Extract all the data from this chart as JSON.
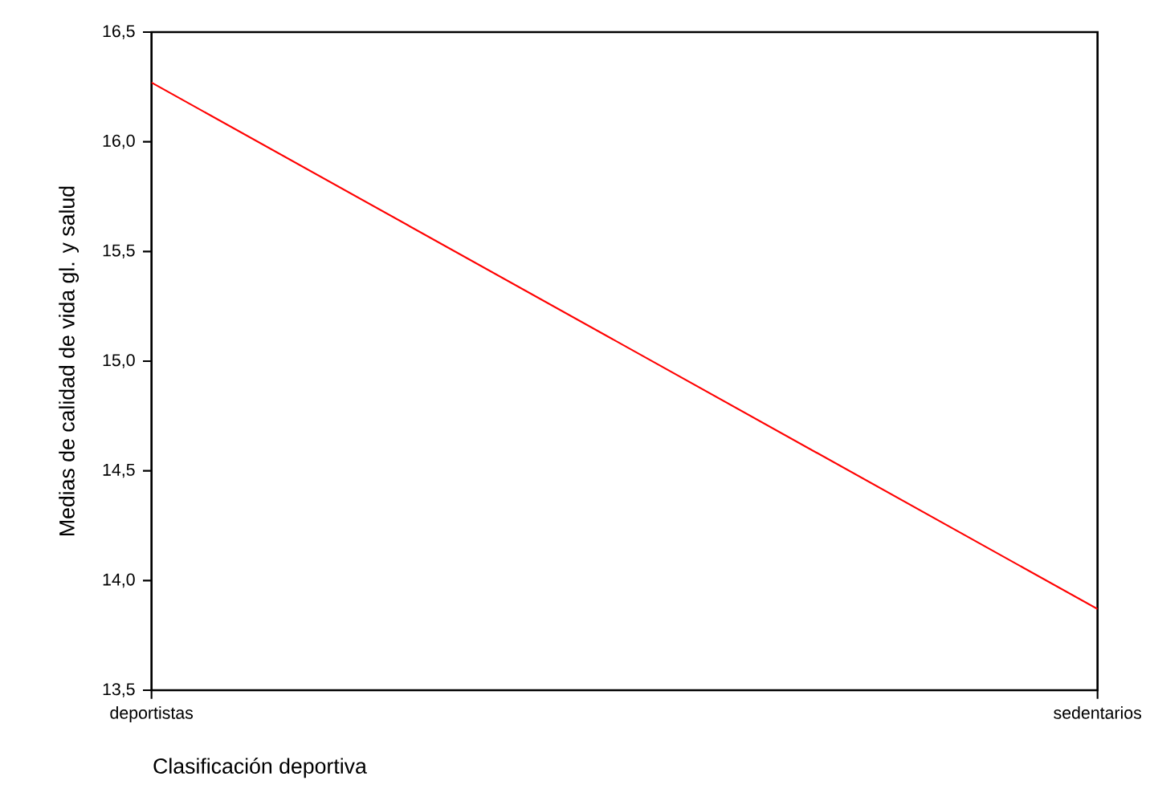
{
  "chart_data": {
    "type": "line",
    "xlabel": "Clasificación deportiva",
    "ylabel": "Medias de calidad de vida gl. y salud",
    "categories": [
      "deportistas",
      "sedentarios"
    ],
    "series": [
      {
        "color": "#ff0000",
        "values": [
          16.27,
          13.87
        ]
      }
    ],
    "ylim": [
      13.5,
      16.5
    ],
    "yticks": [
      {
        "value": 13.5,
        "label": "13,5"
      },
      {
        "value": 14.0,
        "label": "14,0"
      },
      {
        "value": 14.5,
        "label": "14,5"
      },
      {
        "value": 15.0,
        "label": "15,0"
      },
      {
        "value": 15.5,
        "label": "15,5"
      },
      {
        "value": 16.0,
        "label": "16,0"
      },
      {
        "value": 16.5,
        "label": "16,5"
      }
    ],
    "grid": false,
    "marker": "none",
    "line_style": "solid"
  }
}
